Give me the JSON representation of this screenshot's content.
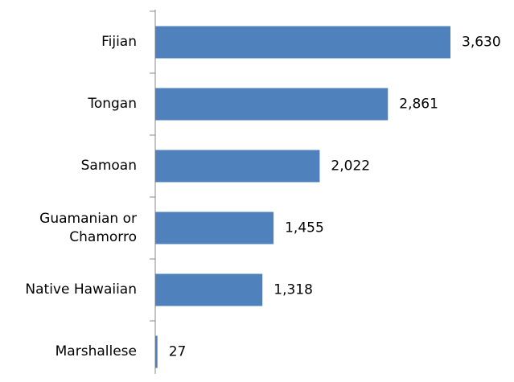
{
  "chart_data": {
    "type": "bar",
    "orientation": "horizontal",
    "categories": [
      "Fijian",
      "Tongan",
      "Samoan",
      "Guamanian or Chamorro",
      "Native Hawaiian",
      "Marshallese"
    ],
    "values": [
      3630,
      2861,
      2022,
      1455,
      1318,
      27
    ],
    "value_labels": [
      "3,630",
      "2,861",
      "2,022",
      "1,455",
      "1,318",
      "27"
    ],
    "color": "#4f81bd"
  }
}
